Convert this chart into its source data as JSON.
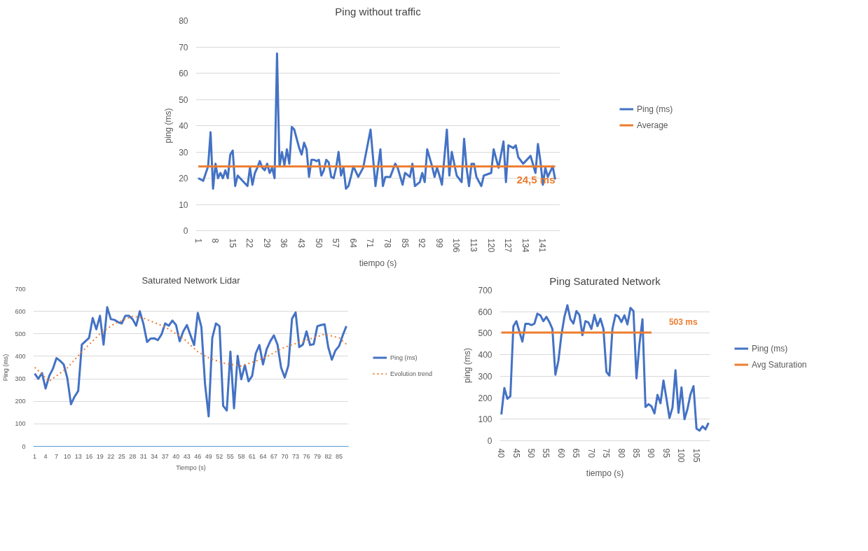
{
  "chart_data": [
    {
      "type": "line",
      "title": "Ping without traffic",
      "xlabel": "tiempo (s)",
      "ylabel": "ping (ms)",
      "xlim": [
        0,
        148
      ],
      "xticks": [
        1,
        8,
        15,
        22,
        29,
        36,
        43,
        50,
        57,
        64,
        71,
        78,
        85,
        92,
        99,
        106,
        113,
        120,
        127,
        134,
        141
      ],
      "ylim": [
        0,
        80
      ],
      "yticks": [
        0,
        10,
        20,
        30,
        40,
        50,
        60,
        70,
        80
      ],
      "grid": "y",
      "legend": "right",
      "marker": "none",
      "series": [
        {
          "name": "Ping (ms)",
          "color": "#4472c4",
          "line_style": "solid",
          "x": [
            1,
            3,
            5,
            6,
            7,
            8,
            9,
            10,
            11,
            12,
            13,
            14,
            15,
            16,
            17,
            18,
            19,
            20,
            21,
            22,
            23,
            24,
            25,
            26,
            27,
            28,
            29,
            30,
            31,
            32,
            33,
            34,
            35,
            36,
            37,
            38,
            39,
            40,
            41,
            42,
            43,
            44,
            45,
            46,
            47,
            48,
            49,
            50,
            51,
            52,
            53,
            54,
            55,
            56,
            57,
            58,
            59,
            60,
            61,
            62,
            63,
            64,
            66,
            68,
            71,
            73,
            75,
            76,
            77,
            79,
            81,
            82,
            84,
            85,
            87,
            88,
            89,
            91,
            92,
            93,
            94,
            96,
            97,
            98,
            99,
            100,
            102,
            103,
            104,
            106,
            108,
            109,
            110,
            111,
            112,
            113,
            114,
            116,
            117,
            120,
            121,
            123,
            125,
            126,
            127,
            129,
            130,
            131,
            133,
            136,
            138,
            139,
            140,
            141,
            142,
            143,
            145,
            146
          ],
          "values": [
            20,
            19,
            24.5,
            37.5,
            16,
            25.5,
            20,
            22,
            20,
            23,
            20,
            29,
            30.5,
            17,
            21,
            20,
            19,
            18,
            17,
            24,
            17.5,
            22,
            24,
            26.5,
            24,
            23,
            25.5,
            22,
            24,
            20,
            67.5,
            24.5,
            30,
            25,
            31,
            25.5,
            39.5,
            38.5,
            35,
            31.5,
            29,
            33.5,
            31,
            20.5,
            27,
            27,
            26.5,
            27,
            21,
            23,
            27,
            26,
            20.5,
            20,
            24,
            30,
            21,
            24,
            16,
            17,
            20.5,
            24.5,
            20.5,
            24,
            38.5,
            17,
            31,
            17,
            20.5,
            20.5,
            25.5,
            24,
            17.5,
            22,
            20.5,
            25.5,
            17,
            18.5,
            22,
            18.5,
            31,
            24.5,
            20.5,
            24,
            21,
            17.5,
            38.5,
            21,
            30,
            21,
            18.5,
            35,
            24,
            17,
            25.5,
            25.5,
            20.5,
            17,
            21,
            22,
            31,
            24,
            34,
            18.5,
            32.5,
            31.5,
            32.5,
            28,
            25.5,
            28.5,
            22,
            33,
            26.5,
            17.5,
            24,
            20.5,
            24.5,
            19.5
          ]
        },
        {
          "name": "Average",
          "color": "#ed7d31",
          "line_style": "solid",
          "x": [
            1,
            146
          ],
          "values": [
            24.5,
            24.5
          ]
        }
      ],
      "annotations": [
        {
          "text": "24,5 ms",
          "x": 146,
          "y": 24.5
        }
      ]
    },
    {
      "type": "line",
      "title": "Saturated Network Lidar",
      "xlabel": "Tiempo (s)",
      "ylabel": "Ping (ms)",
      "xlim": [
        0.6,
        87.6
      ],
      "xticks": [
        1,
        4,
        7,
        10,
        13,
        16,
        19,
        22,
        25,
        28,
        31,
        34,
        37,
        40,
        43,
        46,
        49,
        52,
        55,
        58,
        61,
        64,
        67,
        70,
        73,
        76,
        79,
        82,
        85
      ],
      "ylim": [
        0,
        700
      ],
      "yticks": [
        0,
        100,
        200,
        300,
        400,
        500,
        600,
        700
      ],
      "grid": "y",
      "legend": "right",
      "marker": "none",
      "series": [
        {
          "name": "Ping (ms)",
          "color": "#4472c4",
          "line_style": "solid",
          "x": [
            1,
            2,
            3,
            4,
            5,
            6,
            7,
            8,
            9,
            10,
            11,
            12,
            13,
            14,
            15,
            16,
            17,
            18,
            19,
            20,
            21,
            22,
            23,
            24,
            25,
            26,
            27,
            28,
            29,
            30,
            31,
            32,
            33,
            34,
            35,
            36,
            37,
            38,
            39,
            40,
            41,
            42,
            43,
            44,
            45,
            46,
            47,
            48,
            49,
            50,
            51,
            52,
            53,
            54,
            55,
            56,
            57,
            58,
            59,
            60,
            61,
            62,
            63,
            64,
            65,
            66,
            67,
            68,
            69,
            70,
            71,
            72,
            73,
            74,
            75,
            76,
            77,
            78,
            79,
            80,
            81,
            82,
            83,
            84,
            85,
            86,
            87
          ],
          "values": [
            323,
            300,
            326,
            257,
            313,
            344,
            392,
            380,
            364,
            303,
            187,
            221,
            246,
            452,
            467,
            482,
            570,
            520,
            580,
            452,
            618,
            565,
            562,
            552,
            546,
            580,
            580,
            565,
            536,
            600,
            544,
            464,
            479,
            480,
            472,
            498,
            546,
            536,
            559,
            539,
            467,
            511,
            539,
            493,
            450,
            593,
            529,
            277,
            133,
            482,
            546,
            534,
            180,
            159,
            421,
            169,
            402,
            298,
            361,
            289,
            313,
            413,
            450,
            364,
            431,
            467,
            493,
            452,
            349,
            306,
            359,
            567,
            595,
            441,
            452,
            511,
            450,
            454,
            534,
            539,
            542,
            441,
            385,
            426,
            446,
            493,
            534
          ]
        },
        {
          "name": "Evolution trend",
          "color": "#ed7d31",
          "line_style": "dotted",
          "x": [
            1,
            5,
            10,
            14,
            19,
            23,
            28,
            31,
            37,
            42,
            46,
            49,
            53,
            58,
            64,
            70,
            76,
            81,
            85,
            87
          ],
          "values": [
            351,
            289,
            349,
            420,
            500,
            545,
            578,
            570,
            530,
            480,
            420,
            393,
            370,
            357,
            390,
            441,
            472,
            498,
            482,
            454
          ]
        }
      ]
    },
    {
      "type": "line",
      "title": "Ping Saturated Network",
      "xlabel": "tiempo (s)",
      "ylabel": "ping (ms)",
      "xlim": [
        39.5,
        109.5
      ],
      "xticks": [
        40,
        45,
        50,
        55,
        60,
        65,
        70,
        75,
        80,
        85,
        90,
        95,
        100,
        105
      ],
      "ylim": [
        0,
        700
      ],
      "yticks": [
        0,
        100,
        200,
        300,
        400,
        500,
        600,
        700
      ],
      "grid": "y",
      "legend": "right",
      "marker": "none",
      "series": [
        {
          "name": "Ping (ms)",
          "color": "#4472c4",
          "line_style": "solid",
          "x": [
            40,
            41,
            42,
            43,
            44,
            45,
            46,
            47,
            48,
            49,
            50,
            51,
            52,
            53,
            54,
            55,
            56,
            57,
            58,
            59,
            60,
            61,
            62,
            63,
            64,
            65,
            66,
            67,
            68,
            69,
            70,
            71,
            72,
            73,
            74,
            75,
            76,
            77,
            78,
            79,
            80,
            81,
            82,
            83,
            84,
            85,
            86,
            87,
            88,
            89,
            90,
            91,
            92,
            93,
            94,
            95,
            96,
            97,
            98,
            99,
            100,
            101,
            102,
            103,
            104,
            105,
            106,
            107,
            108,
            109
          ],
          "values": [
            122,
            245,
            195,
            207,
            532,
            556,
            508,
            461,
            544,
            544,
            538,
            544,
            591,
            583,
            556,
            576,
            552,
            520,
            307,
            372,
            491,
            576,
            630,
            565,
            545,
            603,
            585,
            491,
            556,
            550,
            520,
            585,
            533,
            568,
            520,
            320,
            303,
            520,
            585,
            578,
            552,
            583,
            541,
            618,
            603,
            290,
            450,
            565,
            157,
            170,
            160,
            127,
            213,
            174,
            280,
            195,
            106,
            154,
            328,
            130,
            248,
            100,
            148,
            216,
            254,
            56,
            47,
            67,
            53,
            83
          ]
        },
        {
          "name": "Avg Saturation",
          "color": "#ed7d31",
          "line_style": "solid",
          "x": [
            40,
            90
          ],
          "values": [
            503,
            503
          ]
        }
      ],
      "annotations": [
        {
          "text": "503 ms",
          "x": 90,
          "y": 503
        }
      ]
    }
  ]
}
